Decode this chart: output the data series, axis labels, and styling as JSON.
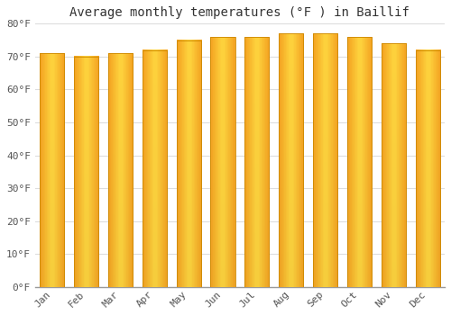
{
  "title": "Average monthly temperatures (°F ) in Baillif",
  "months": [
    "Jan",
    "Feb",
    "Mar",
    "Apr",
    "May",
    "Jun",
    "Jul",
    "Aug",
    "Sep",
    "Oct",
    "Nov",
    "Dec"
  ],
  "values": [
    71,
    70,
    71,
    72,
    75,
    76,
    76,
    77,
    77,
    76,
    74,
    72
  ],
  "bar_color_center": "#FFD740",
  "bar_color_edge": "#F5A623",
  "background_color": "#FFFFFF",
  "grid_color": "#DDDDDD",
  "ylim": [
    0,
    80
  ],
  "yticks": [
    0,
    10,
    20,
    30,
    40,
    50,
    60,
    70,
    80
  ],
  "ytick_labels": [
    "0°F",
    "10°F",
    "20°F",
    "30°F",
    "40°F",
    "50°F",
    "60°F",
    "70°F",
    "80°F"
  ],
  "title_fontsize": 10,
  "tick_fontsize": 8,
  "bar_edge_color": "#CC8800",
  "bar_main_color": "#FFC107"
}
